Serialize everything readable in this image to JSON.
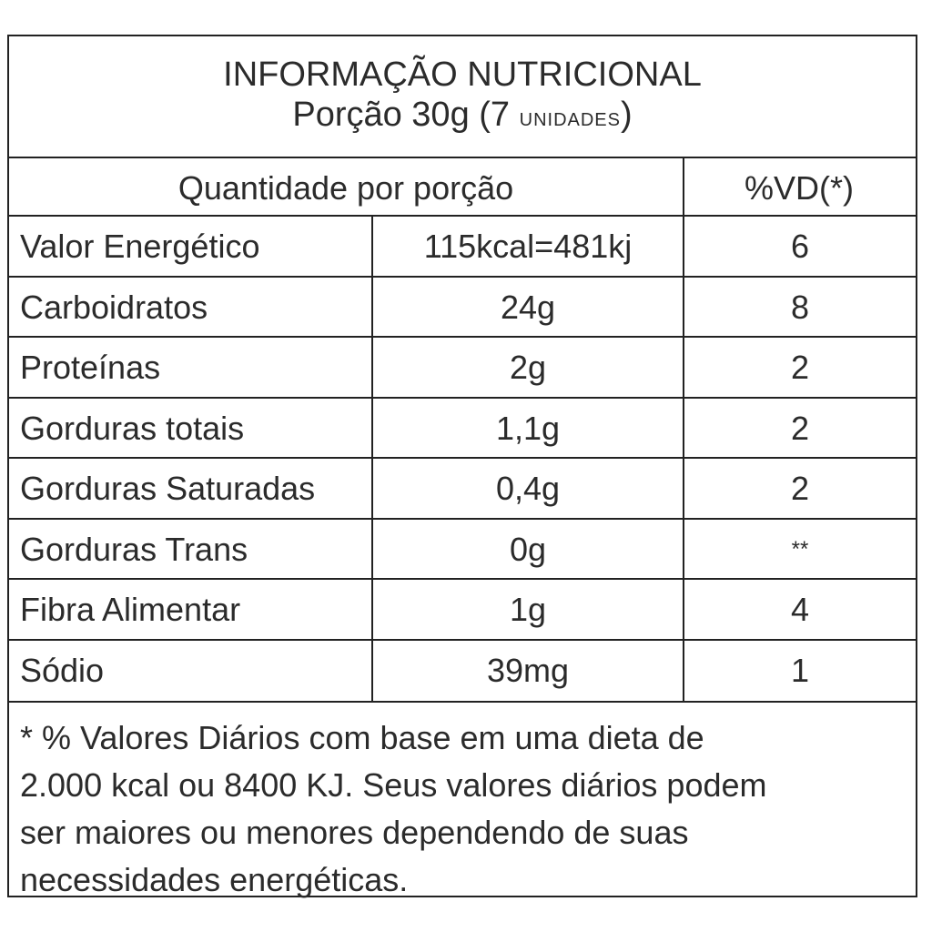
{
  "header": {
    "title": "INFORMAÇÃO NUTRICIONAL",
    "serving": "Porção 30g (7",
    "serving_unit": "UNIDADES",
    "serving_close": ")"
  },
  "table": {
    "columns": [
      "Quantidade por porção",
      "%VD(*)"
    ],
    "rows": [
      [
        "Valor Energético",
        "115kcal=481kj",
        "6"
      ],
      [
        "Carboidratos",
        "24g",
        "8"
      ],
      [
        "Proteínas",
        "2g",
        "2"
      ],
      [
        "Gorduras totais",
        "1,1g",
        "2"
      ],
      [
        "Gorduras Saturadas",
        "0,4g",
        "2"
      ],
      [
        "Gorduras Trans",
        "0g",
        "**"
      ],
      [
        "Fibra Alimentar",
        "1g",
        "4"
      ],
      [
        "Sódio",
        "39mg",
        "1"
      ]
    ]
  },
  "footnote": [
    "* % Valores Diários com base em uma dieta de",
    "2.000 kcal ou 8400 KJ. Seus valores diários podem",
    "ser maiores ou menores dependendo de suas",
    "necessidades energéticas."
  ]
}
